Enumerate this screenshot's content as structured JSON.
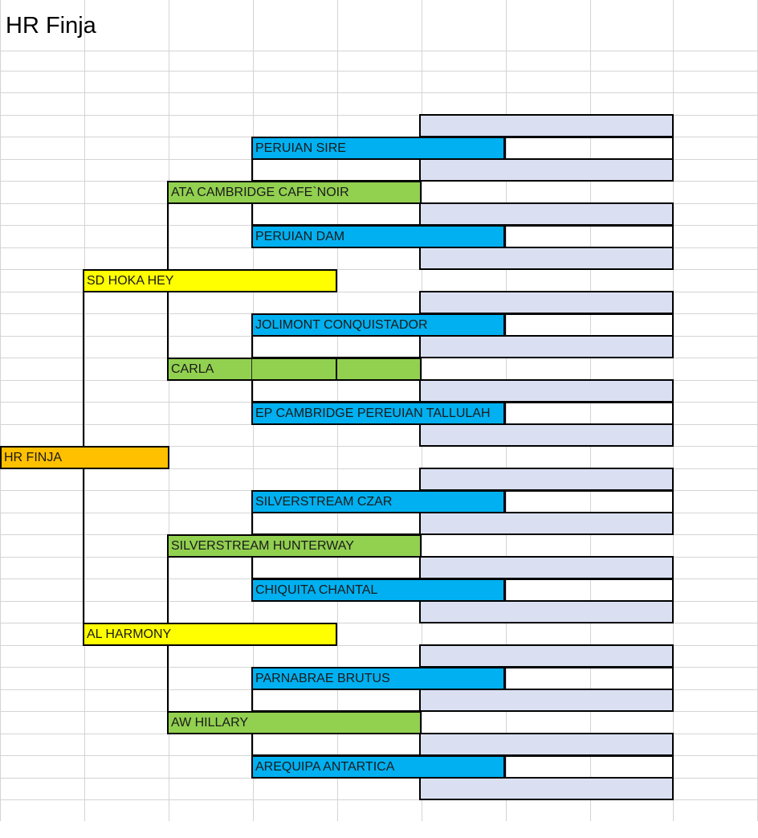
{
  "title": "HR Finja",
  "pedigree": {
    "subject": "HR FINJA",
    "sire": "SD HOKA HEY",
    "dam": "AL HARMONY",
    "sire_sire": "ATA CAMBRIDGE CAFE`NOIR",
    "sire_dam": "CARLA",
    "dam_sire": "SILVERSTREAM HUNTERWAY",
    "dam_dam": "AW HILLARY",
    "gen3": [
      "PERUIAN SIRE",
      "PERUIAN DAM",
      "JOLIMONT CONQUISTADOR",
      "EP CAMBRIDGE PEREUIAN TALLULAH",
      "SILVERSTREAM CZAR",
      "CHIQUITA CHANTAL",
      "PARNABRAE BRUTUS",
      "AREQUIPA ANTARTICA"
    ],
    "gen4": [
      "",
      "",
      "",
      "",
      "",
      "",
      "",
      "",
      "",
      "",
      "",
      "",
      "",
      "",
      "",
      ""
    ]
  },
  "colors": {
    "subject": "#ffc000",
    "parents": "#ffff00",
    "grandparents": "#92d050",
    "great_grandparents": "#00b0f0",
    "gen4": "#dae0f2"
  }
}
